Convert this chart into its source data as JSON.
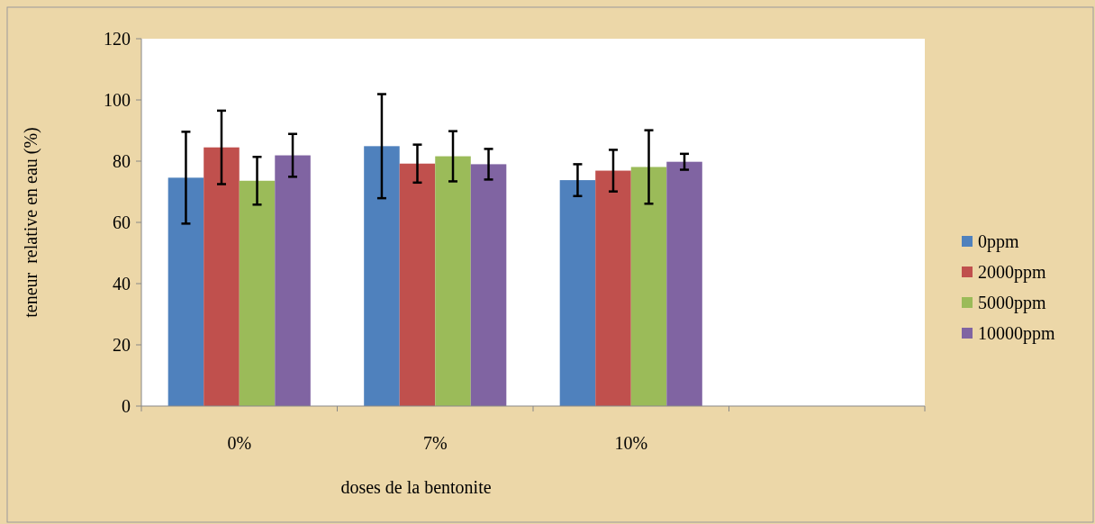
{
  "chart_data": {
    "type": "bar",
    "xlabel": "doses de la bentonite",
    "ylabel": "teneur  relative en eau (%)",
    "categories": [
      "0%",
      "7%",
      "10%",
      null
    ],
    "series": [
      {
        "name": "0ppm",
        "color": "#4f81bd",
        "values": [
          74.6,
          84.9,
          73.8,
          null
        ],
        "errors": [
          15,
          17,
          5.2,
          null
        ]
      },
      {
        "name": "2000ppm",
        "color": "#c0504d",
        "values": [
          84.5,
          79.2,
          76.9,
          null
        ],
        "errors": [
          12,
          6.2,
          6.8,
          null
        ]
      },
      {
        "name": "5000ppm",
        "color": "#9bbb59",
        "values": [
          73.6,
          81.6,
          78.1,
          null
        ],
        "errors": [
          7.8,
          8.2,
          12,
          null
        ]
      },
      {
        "name": "10000ppm",
        "color": "#8064a2",
        "values": [
          81.9,
          79,
          79.8,
          null
        ],
        "errors": [
          7,
          5,
          2.6,
          null
        ]
      }
    ],
    "ylim": [
      0,
      120
    ],
    "yticks": [
      0,
      20,
      40,
      60,
      80,
      100,
      120
    ],
    "grid": false,
    "legend": "right"
  }
}
